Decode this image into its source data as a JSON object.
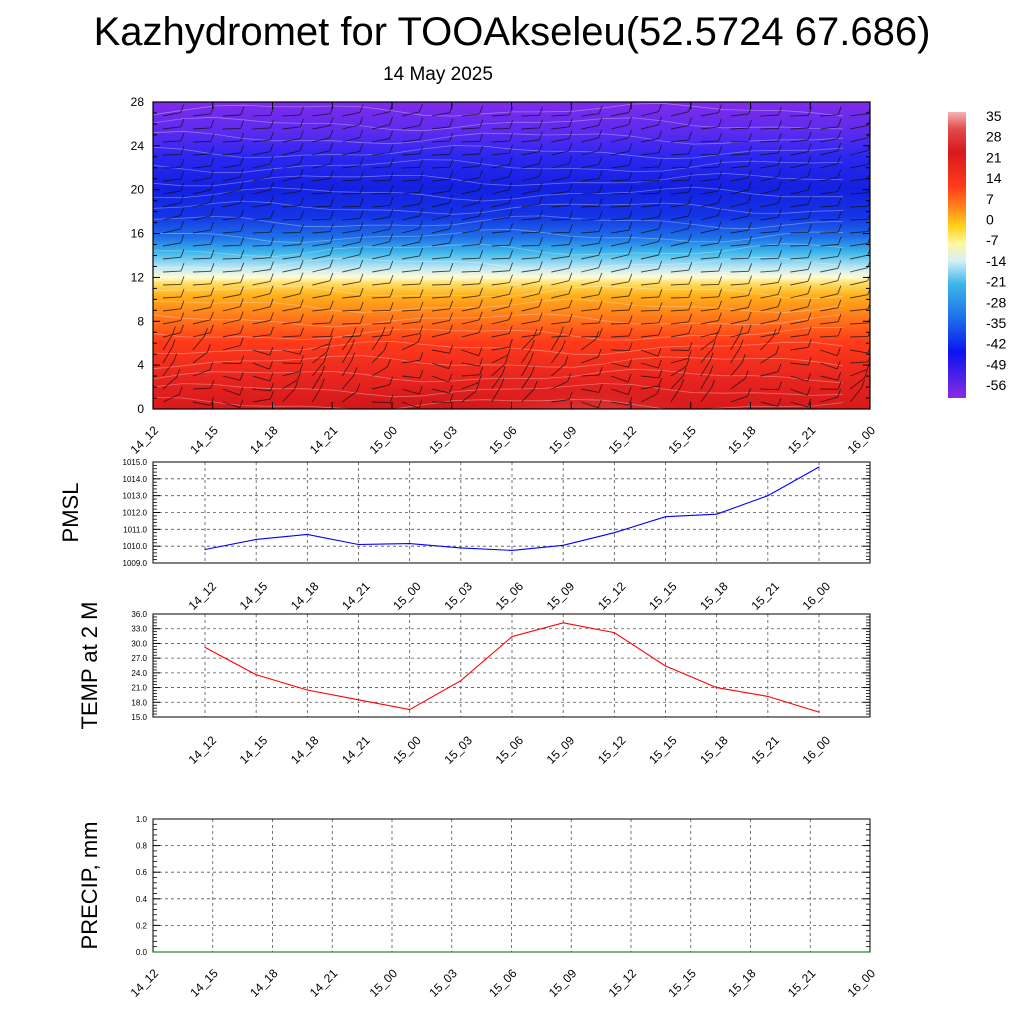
{
  "title": "Kazhydromet for TOOAkseleu(52.5724 67.686)",
  "subtitle": "14 May 2025",
  "time_labels": [
    "14_12",
    "14_15",
    "14_18",
    "14_21",
    "15_00",
    "15_03",
    "15_06",
    "15_09",
    "15_12",
    "15_15",
    "15_18",
    "15_21",
    "16_00"
  ],
  "chart_data": [
    {
      "type": "heatmap",
      "title": "",
      "x": [
        "14_12",
        "14_15",
        "14_18",
        "14_21",
        "15_00",
        "15_03",
        "15_06",
        "15_09",
        "15_12",
        "15_15",
        "15_18",
        "15_21",
        "16_00"
      ],
      "y_ticks": [
        0,
        4,
        8,
        12,
        16,
        20,
        24,
        28
      ],
      "ylim": [
        0,
        28
      ],
      "colorbar": {
        "labels": [
          "35",
          "28",
          "21",
          "14",
          "7",
          "0",
          "-7",
          "-14",
          "-21",
          "-28",
          "-35",
          "-42",
          "-49",
          "-56"
        ],
        "range": [
          -56,
          35
        ],
        "colors": [
          "#f4b3b3",
          "#d7191c",
          "#ff4500",
          "#ffa500",
          "#ffd700",
          "#fffacd",
          "#87ceeb",
          "#1e90ff",
          "#0000ff",
          "#8a2be2"
        ]
      },
      "temperature_profile": [
        {
          "height": 0,
          "value": 28
        },
        {
          "height": 4,
          "value": 21
        },
        {
          "height": 8,
          "value": 10
        },
        {
          "height": 12,
          "value": -8
        },
        {
          "height": 14,
          "value": -14
        },
        {
          "height": 16,
          "value": -28
        },
        {
          "height": 18,
          "value": -45
        },
        {
          "height": 20,
          "value": -56
        },
        {
          "height": 24,
          "value": -52
        },
        {
          "height": 28,
          "value": -50
        }
      ],
      "note_wind_barbs": true
    },
    {
      "type": "line",
      "ylabel": "PMSL",
      "x": [
        "14_12",
        "14_15",
        "14_18",
        "14_21",
        "15_00",
        "15_03",
        "15_06",
        "15_09",
        "15_12",
        "15_15",
        "15_18",
        "15_21",
        "16_00"
      ],
      "yticks": [
        "1009.0",
        "1010.0",
        "1011.0",
        "1012.0",
        "1013.0",
        "1014.0",
        "1015.0"
      ],
      "ylim": [
        1009.0,
        1015.0
      ],
      "series": [
        {
          "values": [
            1009.8,
            1010.4,
            1010.7,
            1010.1,
            1010.15,
            1009.9,
            1009.75,
            1010.05,
            1010.8,
            1011.75,
            1011.9,
            1013.0,
            1014.7
          ],
          "color": "#0000ff"
        }
      ],
      "grid": true
    },
    {
      "type": "line",
      "ylabel": "TEMP at 2 M",
      "x": [
        "14_12",
        "14_15",
        "14_18",
        "14_21",
        "15_00",
        "15_03",
        "15_06",
        "15_09",
        "15_12",
        "15_15",
        "15_18",
        "15_21",
        "16_00"
      ],
      "yticks": [
        "15.0",
        "18.0",
        "21.0",
        "24.0",
        "27.0",
        "30.0",
        "33.0",
        "36.0"
      ],
      "ylim": [
        15.0,
        36.0
      ],
      "series": [
        {
          "values": [
            29.2,
            23.6,
            20.5,
            18.5,
            16.5,
            22.4,
            31.4,
            34.2,
            32.2,
            25.4,
            21.0,
            19.2,
            16.0
          ],
          "color": "#ff0000"
        }
      ],
      "grid": true
    },
    {
      "type": "line",
      "ylabel": "PRECIP, mm",
      "x": [
        "14_12",
        "14_15",
        "14_18",
        "14_21",
        "15_00",
        "15_03",
        "15_06",
        "15_09",
        "15_12",
        "15_15",
        "15_18",
        "15_21",
        "16_00"
      ],
      "yticks": [
        "0.0",
        "0.2",
        "0.4",
        "0.6",
        "0.8",
        "1.0"
      ],
      "ylim": [
        0.0,
        1.0
      ],
      "series": [
        {
          "values": [
            0,
            0,
            0,
            0,
            0,
            0,
            0,
            0,
            0,
            0,
            0,
            0,
            0
          ],
          "color": "#006400"
        }
      ],
      "grid": true
    }
  ]
}
